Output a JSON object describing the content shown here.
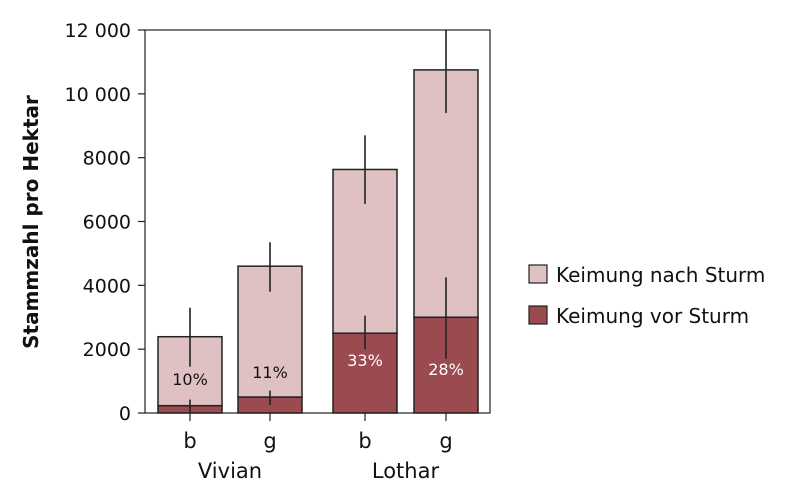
{
  "chart_data": {
    "type": "bar",
    "stacked": true,
    "ylabel": "Stammzahl pro Hektar",
    "ylim": [
      0,
      12000
    ],
    "yticks": [
      0,
      2000,
      4000,
      6000,
      8000,
      10000,
      12000
    ],
    "ytick_labels": [
      "0",
      "2000",
      "4000",
      "6000",
      "8000",
      "10 000",
      "12 000"
    ],
    "categories": [
      "b",
      "g",
      "b",
      "g"
    ],
    "groups": [
      {
        "label": "Vivian",
        "members": [
          0,
          1
        ]
      },
      {
        "label": "Lothar",
        "members": [
          2,
          3
        ]
      }
    ],
    "series": [
      {
        "name": "Keimung vor Sturm",
        "color": "#9b4a4f",
        "values": [
          230,
          500,
          2500,
          3000
        ],
        "error_low": [
          0,
          250,
          2000,
          1700
        ],
        "error_high": [
          420,
          700,
          3050,
          4250
        ]
      },
      {
        "name": "Keimung nach Sturm",
        "color": "#dfc1c3",
        "values": [
          2160,
          4100,
          5130,
          7750
        ],
        "total_error_low": [
          1450,
          3800,
          6550,
          9400
        ],
        "total_error_high": [
          3300,
          5350,
          8700,
          12000
        ]
      }
    ],
    "percent_labels": [
      "10%",
      "11%",
      "33%",
      "28%"
    ],
    "percent_label_colors": [
      "#111111",
      "#111111",
      "#ffffff",
      "#ffffff"
    ],
    "grid": false,
    "legend_position": "right"
  }
}
